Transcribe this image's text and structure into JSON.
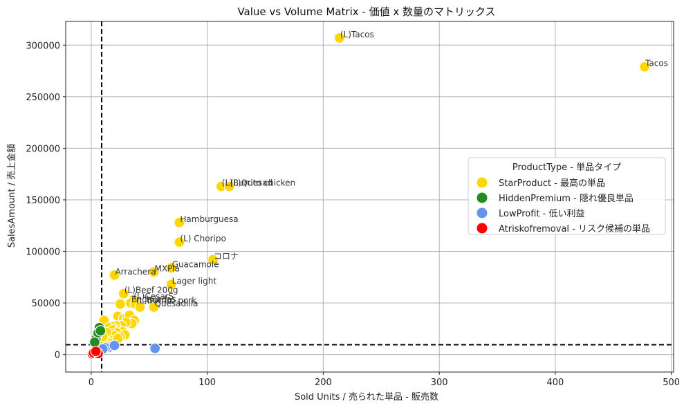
{
  "chart_data": {
    "type": "scatter",
    "title": "Value vs Volume Matrix - 価値 x 数量のマトリックス",
    "xlabel": "Sold Units / 売られた単品 - 販売数",
    "ylabel": "SalesAmount / 売上金額",
    "xlim": [
      -22,
      502
    ],
    "ylim": [
      -17000,
      323000
    ],
    "xticks": [
      0,
      100,
      200,
      300,
      400,
      500
    ],
    "yticks": [
      0,
      50000,
      100000,
      150000,
      200000,
      250000,
      300000
    ],
    "grid": true,
    "thresholds": {
      "x": 9,
      "y": 9500
    },
    "legend": {
      "title": "ProductType - 単品タイプ",
      "position": "center-right"
    },
    "series": [
      {
        "name": "StarProduct - 最高の単品",
        "color": "#FFD700",
        "points": [
          {
            "x": 214,
            "y": 307000,
            "label": "(L)Tacos"
          },
          {
            "x": 477,
            "y": 279000,
            "label": "Tacos"
          },
          {
            "x": 112,
            "y": 163000,
            "label": "(L)Burrito chicken"
          },
          {
            "x": 119,
            "y": 163000,
            "label": "(L)Quesad"
          },
          {
            "x": 76,
            "y": 128000,
            "label": "Hamburguesa"
          },
          {
            "x": 76,
            "y": 109000,
            "label": "(L) Choripo"
          },
          {
            "x": 105,
            "y": 92000,
            "label": "コロナ"
          },
          {
            "x": 69,
            "y": 84000,
            "label": "Guacamole"
          },
          {
            "x": 54,
            "y": 80000,
            "label": "MXPia"
          },
          {
            "x": 20,
            "y": 77000,
            "label": "Arrachera"
          },
          {
            "x": 69,
            "y": 68000,
            "label": "Lager light"
          },
          {
            "x": 28,
            "y": 59000,
            "label": "(L)Beef 200g"
          },
          {
            "x": 36,
            "y": 53000,
            "label": "(L)CesarS"
          },
          {
            "x": 34,
            "y": 50000,
            "label": "Enchiladas"
          },
          {
            "x": 38,
            "y": 49000,
            "label": "(L)Burrito pork"
          },
          {
            "x": 54,
            "y": 46000,
            "label": "Quesadilla"
          },
          {
            "x": 25,
            "y": 49000
          },
          {
            "x": 42,
            "y": 46000
          },
          {
            "x": 11,
            "y": 33000
          },
          {
            "x": 23,
            "y": 37000
          },
          {
            "x": 28,
            "y": 35000
          },
          {
            "x": 31,
            "y": 36000
          },
          {
            "x": 33,
            "y": 38000
          },
          {
            "x": 37,
            "y": 33000
          },
          {
            "x": 35,
            "y": 30000
          },
          {
            "x": 30,
            "y": 31000
          },
          {
            "x": 26,
            "y": 28000
          },
          {
            "x": 21,
            "y": 28000
          },
          {
            "x": 18,
            "y": 27000
          },
          {
            "x": 15,
            "y": 26000
          },
          {
            "x": 19,
            "y": 24000
          },
          {
            "x": 24,
            "y": 23000
          },
          {
            "x": 27,
            "y": 22000
          },
          {
            "x": 22,
            "y": 21000
          },
          {
            "x": 17,
            "y": 20000
          },
          {
            "x": 29,
            "y": 19000
          },
          {
            "x": 20,
            "y": 18000
          },
          {
            "x": 25,
            "y": 17000
          },
          {
            "x": 14,
            "y": 16000
          },
          {
            "x": 16,
            "y": 14000
          },
          {
            "x": 21,
            "y": 13000
          },
          {
            "x": 12,
            "y": 12500
          },
          {
            "x": 18,
            "y": 11000
          },
          {
            "x": 23,
            "y": 15500
          },
          {
            "x": 13,
            "y": 21500
          },
          {
            "x": 10,
            "y": 17500
          }
        ]
      },
      {
        "name": "HiddenPremium - 隠れ優良単品",
        "color": "#228B22",
        "points": [
          {
            "x": 7,
            "y": 26000
          },
          {
            "x": 5,
            "y": 18000
          },
          {
            "x": 4,
            "y": 15000
          },
          {
            "x": 6,
            "y": 21000
          },
          {
            "x": 8,
            "y": 23000
          },
          {
            "x": 3,
            "y": 12000
          }
        ]
      },
      {
        "name": "LowProfit - 低い利益",
        "color": "#6495ED",
        "points": [
          {
            "x": 55,
            "y": 6000
          },
          {
            "x": 17,
            "y": 8000
          },
          {
            "x": 15,
            "y": 7000
          },
          {
            "x": 12,
            "y": 6500
          },
          {
            "x": 20,
            "y": 8800
          },
          {
            "x": 10,
            "y": 5500
          }
        ]
      },
      {
        "name": "Atriskofremoval - リスク候補の単品",
        "color": "#FF0000",
        "points": [
          {
            "x": 1,
            "y": 500
          },
          {
            "x": 3,
            "y": 800
          },
          {
            "x": 5,
            "y": 600
          },
          {
            "x": 2,
            "y": 1500
          },
          {
            "x": 6,
            "y": 1000
          },
          {
            "x": 4,
            "y": 3000
          }
        ]
      }
    ]
  }
}
